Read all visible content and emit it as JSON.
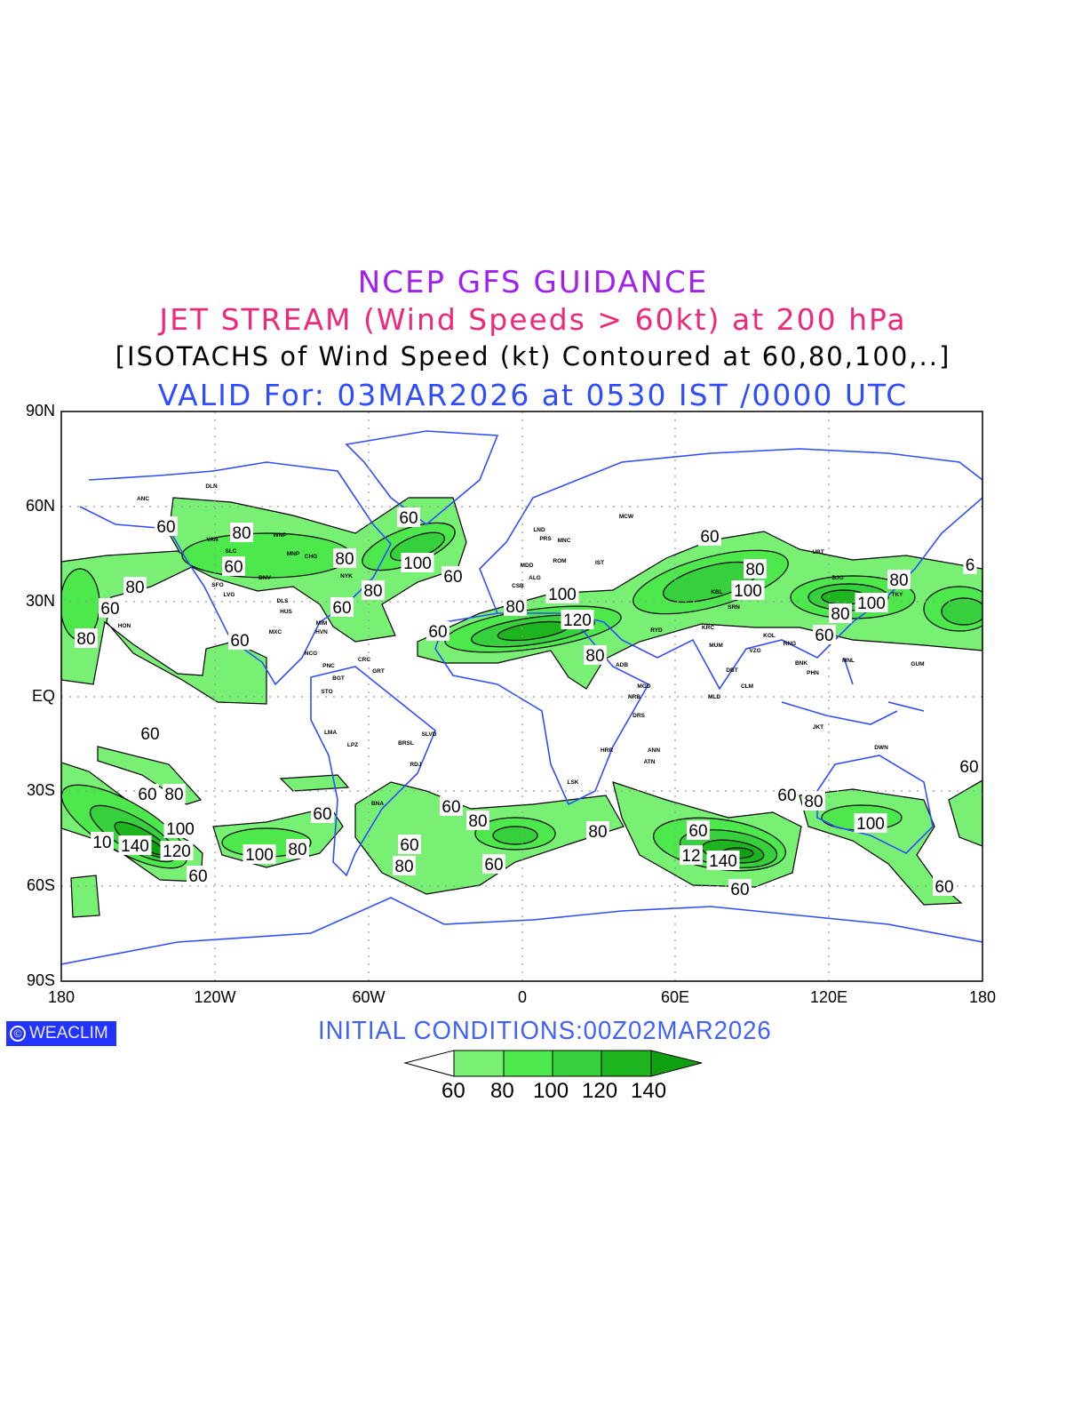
{
  "titles": {
    "line1": "NCEP GFS GUIDANCE",
    "line2": "JET STREAM (Wind Speeds > 60kt) at 200 hPa",
    "line3": "[ISOTACHS of Wind Speed (kt) Contoured at 60,80,100,..]",
    "line4": "VALID For: 03MAR2026 at 0530 IST /0000 UTC"
  },
  "axes": {
    "lat_ticks": [
      "90N",
      "60N",
      "30N",
      "EQ",
      "30S",
      "60S",
      "90S"
    ],
    "lon_ticks": [
      "180",
      "120W",
      "60W",
      "0",
      "60E",
      "120E",
      "180"
    ]
  },
  "logo": {
    "symbol": "©",
    "text": "WEACLIM"
  },
  "initial_conditions": "INITIAL CONDITIONS:00Z02MAR2026",
  "colorbar": {
    "labels": [
      "60",
      "80",
      "100",
      "120",
      "140"
    ],
    "colors": [
      "#ffffff",
      "#78f073",
      "#4ce84c",
      "#36d03c",
      "#1eb41e",
      "#0fa00f"
    ]
  },
  "colors": {
    "coast": "#2f4dff",
    "title_purple": "#a020f0",
    "title_pink": "#f0287a",
    "title_blue": "#2f4dff"
  },
  "contour_labels": [
    "60",
    "80",
    "60",
    "80",
    "100",
    "60",
    "60",
    "80",
    "60",
    "80",
    "60",
    "80",
    "60",
    "60",
    "80",
    "100",
    "120",
    "80",
    "60",
    "80",
    "100",
    "80",
    "100",
    "80",
    "60",
    "6",
    "60",
    "60",
    "80",
    "100",
    "10",
    "140",
    "120",
    "60",
    "60",
    "100",
    "80",
    "60",
    "80",
    "60",
    "80",
    "60",
    "80",
    "60",
    "80",
    "100",
    "12",
    "140",
    "60",
    "60",
    "60",
    "60"
  ],
  "stations": [
    "ANC",
    "DLN",
    "VAN",
    "WNP",
    "MNP",
    "CHG",
    "NYK",
    "DNV",
    "SLC",
    "SFO",
    "LVG",
    "DLS",
    "HUS",
    "MIM",
    "HVN",
    "MXC",
    "HON",
    "NCG",
    "PNC",
    "BGT",
    "CRC",
    "GRT",
    "STO",
    "MCW",
    "LND",
    "PRS",
    "MNC",
    "MDD",
    "ROM",
    "IST",
    "ALG",
    "CSB",
    "RYD",
    "ADB",
    "MGD",
    "NRB",
    "DRS",
    "ANN",
    "KRC",
    "MUM",
    "DBT",
    "CLM",
    "MLD",
    "VZG",
    "KOL",
    "RNG",
    "BNK",
    "PHN",
    "MNL",
    "GUM",
    "UBT",
    "BJG",
    "TKY",
    "JKT",
    "DWN",
    "ATN",
    "LMA",
    "LPZ",
    "BRSL",
    "SLVD",
    "RDJ",
    "BNA",
    "LSK",
    "HRR",
    "SRN",
    "KBL"
  ]
}
